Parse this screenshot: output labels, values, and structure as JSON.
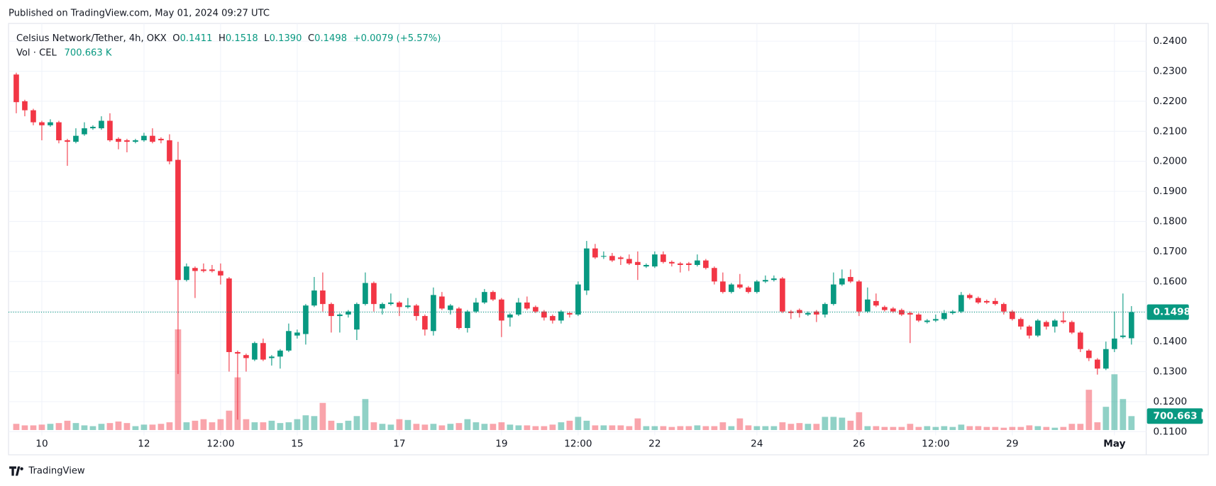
{
  "chart_data": {
    "type": "candlestick",
    "published": "Published on TradingView.com, May 01, 2024 09:27 UTC",
    "brand": "TradingView",
    "legend": {
      "symbol": "Celsius Network/Tether, 4h, OKX",
      "open_label": "O",
      "open": "0.1411",
      "high_label": "H",
      "high": "0.1518",
      "low_label": "L",
      "low": "0.1390",
      "close_label": "C",
      "close": "0.1498",
      "change": "+0.0079 (+5.57%)",
      "volume_label": "Vol · CEL",
      "volume": "700.663 K"
    },
    "up_color": "#089981",
    "down_color": "#f23645",
    "ylim": [
      0.1023,
      0.2459
    ],
    "yticks": [
      {
        "value": 0.24,
        "label": "0.2400"
      },
      {
        "value": 0.23,
        "label": "0.2300"
      },
      {
        "value": 0.22,
        "label": "0.2200"
      },
      {
        "value": 0.21,
        "label": "0.2100"
      },
      {
        "value": 0.2,
        "label": "0.2000"
      },
      {
        "value": 0.19,
        "label": "0.1900"
      },
      {
        "value": 0.18,
        "label": "0.1800"
      },
      {
        "value": 0.17,
        "label": "0.1700"
      },
      {
        "value": 0.16,
        "label": "0.1600"
      },
      {
        "value": 0.15,
        "label": "0.1500"
      },
      {
        "value": 0.14,
        "label": "0.1400"
      },
      {
        "value": 0.13,
        "label": "0.1300"
      },
      {
        "value": 0.12,
        "label": "0.1200"
      },
      {
        "value": 0.11,
        "label": "0.1100"
      }
    ],
    "last_price": {
      "value": 0.1498,
      "label": "0.1498"
    },
    "grid": true,
    "categories": [
      null,
      null,
      null,
      "10",
      null,
      null,
      null,
      null,
      null,
      null,
      null,
      null,
      null,
      null,
      null,
      "12",
      null,
      null,
      null,
      null,
      null,
      null,
      null,
      null,
      "12:00",
      null,
      null,
      null,
      null,
      null,
      null,
      null,
      null,
      "15",
      null,
      null,
      null,
      null,
      null,
      null,
      null,
      null,
      null,
      null,
      null,
      "17",
      null,
      null,
      null,
      null,
      null,
      null,
      null,
      null,
      null,
      null,
      null,
      "19",
      null,
      null,
      null,
      null,
      null,
      null,
      null,
      null,
      "12:00",
      null,
      null,
      null,
      null,
      null,
      null,
      null,
      null,
      "22",
      null,
      null,
      null,
      null,
      null,
      null,
      null,
      null,
      null,
      null,
      null,
      "24",
      null,
      null,
      null,
      null,
      null,
      null,
      null,
      null,
      null,
      null,
      null,
      "26",
      null,
      null,
      null,
      null,
      null,
      null,
      null,
      null,
      "12:00",
      null,
      null,
      null,
      null,
      null,
      null,
      null,
      null,
      "29",
      null,
      null,
      null,
      null,
      null,
      null,
      null,
      null,
      null,
      null,
      null,
      "May",
      null,
      null
    ],
    "open": [
      0.2289,
      0.22,
      0.217,
      0.213,
      0.212,
      0.213,
      0.207,
      0.2065,
      0.209,
      0.211,
      0.211,
      0.2135,
      0.2075,
      0.207,
      0.2065,
      0.207,
      0.2085,
      0.2075,
      0.207,
      0.2005,
      0.1605,
      0.1645,
      0.164,
      0.164,
      0.1635,
      0.161,
      0.1365,
      0.1355,
      0.134,
      0.1395,
      0.1345,
      0.135,
      0.137,
      0.142,
      0.1425,
      0.152,
      0.157,
      0.1525,
      0.1485,
      0.149,
      0.144,
      0.1525,
      0.1595,
      0.151,
      0.1525,
      0.153,
      0.1515,
      0.152,
      0.1485,
      0.1435,
      0.155,
      0.1505,
      0.151,
      0.1445,
      0.15,
      0.153,
      0.1565,
      0.154,
      0.148,
      0.149,
      0.153,
      0.1515,
      0.15,
      0.1485,
      0.147,
      0.1495,
      0.149,
      0.157,
      0.171,
      0.1685,
      0.1685,
      0.168,
      0.1675,
      0.1665,
      0.165,
      0.165,
      0.169,
      0.1665,
      0.166,
      0.166,
      0.1655,
      0.167,
      0.1645,
      0.16,
      0.1565,
      0.159,
      0.158,
      0.1565,
      0.16,
      0.1605,
      0.161,
      0.15,
      0.1505,
      0.149,
      0.15,
      0.149,
      0.1525,
      0.159,
      0.1615,
      0.16,
      0.15,
      0.1535,
      0.1515,
      0.151,
      0.1505,
      0.1495,
      0.149,
      0.1465,
      0.147,
      0.1475,
      0.1495,
      0.15,
      0.1555,
      0.1545,
      0.1535,
      0.1535,
      0.1525,
      0.15,
      0.1475,
      0.145,
      0.142,
      0.1465,
      0.145,
      0.147,
      0.1465,
      0.143,
      0.137,
      0.134,
      0.131,
      0.1375,
      0.1415,
      0.1411
    ],
    "high": [
      0.2295,
      0.2205,
      0.2175,
      0.2135,
      0.214,
      0.2135,
      0.2075,
      0.211,
      0.213,
      0.212,
      0.215,
      0.216,
      0.208,
      0.2075,
      0.2075,
      0.2095,
      0.211,
      0.208,
      0.209,
      0.2065,
      0.166,
      0.165,
      0.166,
      0.1655,
      0.166,
      0.1615,
      0.137,
      0.136,
      0.14,
      0.141,
      0.1355,
      0.1375,
      0.146,
      0.144,
      0.1525,
      0.1615,
      0.163,
      0.153,
      0.1495,
      0.1505,
      0.153,
      0.163,
      0.16,
      0.153,
      0.156,
      0.1535,
      0.1545,
      0.1525,
      0.149,
      0.158,
      0.1565,
      0.1525,
      0.1515,
      0.1505,
      0.1545,
      0.1575,
      0.157,
      0.1545,
      0.1495,
      0.1545,
      0.155,
      0.152,
      0.1505,
      0.149,
      0.1505,
      0.15,
      0.16,
      0.1735,
      0.1725,
      0.17,
      0.1695,
      0.1685,
      0.169,
      0.17,
      0.166,
      0.17,
      0.17,
      0.167,
      0.1665,
      0.1665,
      0.169,
      0.1675,
      0.165,
      0.163,
      0.1595,
      0.1625,
      0.1585,
      0.1605,
      0.162,
      0.162,
      0.1615,
      0.1505,
      0.151,
      0.15,
      0.1505,
      0.153,
      0.163,
      0.164,
      0.164,
      0.1605,
      0.158,
      0.156,
      0.152,
      0.1515,
      0.151,
      0.15,
      0.1495,
      0.1475,
      0.149,
      0.1505,
      0.1505,
      0.1565,
      0.156,
      0.155,
      0.154,
      0.1545,
      0.153,
      0.1505,
      0.148,
      0.1455,
      0.1475,
      0.147,
      0.1475,
      0.15,
      0.147,
      0.1435,
      0.1375,
      0.1345,
      0.14,
      0.15,
      0.156,
      0.1518
    ],
    "low": [
      0.216,
      0.215,
      0.212,
      0.207,
      0.2115,
      0.206,
      0.1985,
      0.206,
      0.2085,
      0.2105,
      0.2105,
      0.2065,
      0.204,
      0.203,
      0.206,
      0.2065,
      0.206,
      0.206,
      0.199,
      0.1292,
      0.16,
      0.1545,
      0.163,
      0.163,
      0.159,
      0.13,
      0.114,
      0.13,
      0.1335,
      0.1335,
      0.132,
      0.131,
      0.1365,
      0.141,
      0.139,
      0.1515,
      0.15,
      0.143,
      0.143,
      0.148,
      0.1405,
      0.152,
      0.15,
      0.149,
      0.152,
      0.1485,
      0.151,
      0.147,
      0.142,
      0.142,
      0.1505,
      0.149,
      0.144,
      0.143,
      0.1495,
      0.1525,
      0.1535,
      0.1415,
      0.145,
      0.1485,
      0.1505,
      0.1495,
      0.147,
      0.146,
      0.146,
      0.148,
      0.1485,
      0.1555,
      0.1675,
      0.1675,
      0.1665,
      0.1655,
      0.1655,
      0.1605,
      0.1645,
      0.1645,
      0.166,
      0.165,
      0.163,
      0.1635,
      0.165,
      0.164,
      0.159,
      0.156,
      0.156,
      0.1575,
      0.156,
      0.156,
      0.1595,
      0.16,
      0.1495,
      0.1475,
      0.148,
      0.1485,
      0.1465,
      0.148,
      0.152,
      0.1585,
      0.1595,
      0.1485,
      0.1495,
      0.1515,
      0.15,
      0.1495,
      0.1485,
      0.1395,
      0.1465,
      0.146,
      0.1465,
      0.147,
      0.149,
      0.1495,
      0.154,
      0.1525,
      0.1525,
      0.152,
      0.149,
      0.147,
      0.144,
      0.141,
      0.1415,
      0.144,
      0.143,
      0.146,
      0.1425,
      0.1365,
      0.1335,
      0.129,
      0.1305,
      0.1365,
      0.141,
      0.139
    ],
    "close": [
      0.2197,
      0.217,
      0.213,
      0.212,
      0.213,
      0.207,
      0.2065,
      0.2085,
      0.211,
      0.2115,
      0.2135,
      0.207,
      0.2065,
      0.2065,
      0.207,
      0.2085,
      0.2065,
      0.207,
      0.2,
      0.1605,
      0.165,
      0.1635,
      0.1635,
      0.1635,
      0.162,
      0.1365,
      0.136,
      0.1345,
      0.1395,
      0.134,
      0.135,
      0.137,
      0.1435,
      0.143,
      0.152,
      0.157,
      0.1525,
      0.1485,
      0.149,
      0.15,
      0.1525,
      0.1595,
      0.1525,
      0.1525,
      0.153,
      0.1515,
      0.152,
      0.1485,
      0.144,
      0.1555,
      0.151,
      0.152,
      0.1445,
      0.15,
      0.153,
      0.1565,
      0.154,
      0.147,
      0.149,
      0.153,
      0.151,
      0.15,
      0.148,
      0.147,
      0.15,
      0.149,
      0.159,
      0.171,
      0.168,
      0.1685,
      0.167,
      0.1675,
      0.166,
      0.1655,
      0.1655,
      0.169,
      0.1665,
      0.166,
      0.1655,
      0.1655,
      0.167,
      0.1645,
      0.16,
      0.1565,
      0.159,
      0.158,
      0.1565,
      0.16,
      0.1605,
      0.161,
      0.15,
      0.1495,
      0.1495,
      0.1495,
      0.149,
      0.1525,
      0.159,
      0.161,
      0.16,
      0.15,
      0.154,
      0.152,
      0.1505,
      0.15,
      0.149,
      0.149,
      0.147,
      0.147,
      0.1475,
      0.1495,
      0.15,
      0.1555,
      0.1545,
      0.153,
      0.153,
      0.1525,
      0.15,
      0.1475,
      0.145,
      0.142,
      0.147,
      0.145,
      0.147,
      0.1465,
      0.143,
      0.1375,
      0.1345,
      0.131,
      0.1375,
      0.141,
      0.142,
      0.1498
    ],
    "volume": [
      312,
      234,
      234,
      273,
      312,
      351,
      468,
      351,
      234,
      195,
      312,
      351,
      429,
      351,
      195,
      273,
      273,
      312,
      390,
      5070,
      390,
      468,
      546,
      390,
      546,
      975,
      2652,
      546,
      390,
      390,
      468,
      351,
      390,
      546,
      741,
      702,
      1365,
      468,
      351,
      468,
      702,
      1560,
      390,
      312,
      273,
      546,
      507,
      312,
      273,
      312,
      234,
      312,
      351,
      546,
      390,
      312,
      312,
      390,
      273,
      234,
      234,
      195,
      195,
      273,
      390,
      468,
      663,
      468,
      234,
      234,
      234,
      234,
      195,
      585,
      195,
      195,
      195,
      156,
      195,
      195,
      234,
      195,
      195,
      390,
      195,
      585,
      234,
      195,
      195,
      195,
      390,
      312,
      351,
      312,
      312,
      663,
      663,
      624,
      468,
      897,
      195,
      195,
      156,
      156,
      156,
      312,
      156,
      195,
      156,
      195,
      156,
      273,
      195,
      195,
      156,
      156,
      117,
      156,
      156,
      234,
      195,
      156,
      117,
      156,
      312,
      312,
      2028,
      390,
      1170,
      2808,
      1560,
      700.663
    ]
  }
}
